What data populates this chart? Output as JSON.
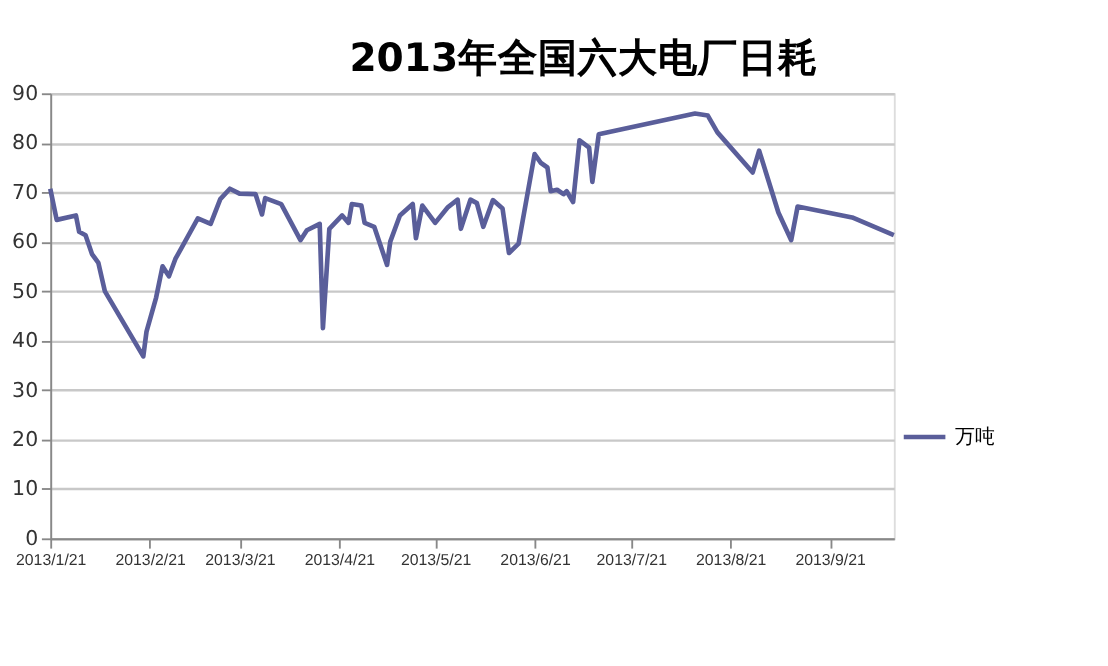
{
  "chart_data": {
    "type": "line",
    "title": "2013年全国六大电厂日耗",
    "x": [
      "2013-01-21",
      "2013-01-23",
      "2013-01-29",
      "2013-01-30",
      "2013-02-01",
      "2013-02-03",
      "2013-02-05",
      "2013-02-07",
      "2013-02-19",
      "2013-02-20",
      "2013-02-23",
      "2013-02-25",
      "2013-02-27",
      "2013-03-01",
      "2013-03-04",
      "2013-03-08",
      "2013-03-12",
      "2013-03-15",
      "2013-03-18",
      "2013-03-21",
      "2013-03-26",
      "2013-03-28",
      "2013-03-29",
      "2013-04-03",
      "2013-04-09",
      "2013-04-11",
      "2013-04-15",
      "2013-04-16",
      "2013-04-18",
      "2013-04-22",
      "2013-04-24",
      "2013-04-25",
      "2013-04-28",
      "2013-04-29",
      "2013-05-02",
      "2013-05-06",
      "2013-05-07",
      "2013-05-10",
      "2013-05-14",
      "2013-05-15",
      "2013-05-17",
      "2013-05-21",
      "2013-05-25",
      "2013-05-28",
      "2013-05-29",
      "2013-06-01",
      "2013-06-03",
      "2013-06-05",
      "2013-06-08",
      "2013-06-11",
      "2013-06-13",
      "2013-06-16",
      "2013-06-21",
      "2013-06-23",
      "2013-06-25",
      "2013-06-26",
      "2013-06-28",
      "2013-06-30",
      "2013-07-01",
      "2013-07-03",
      "2013-07-05",
      "2013-07-08",
      "2013-07-09",
      "2013-07-11",
      "2013-08-10",
      "2013-08-14",
      "2013-08-17",
      "2013-08-28",
      "2013-08-30",
      "2013-09-05",
      "2013-09-09",
      "2013-09-11",
      "2013-09-28",
      "2013-10-11"
    ],
    "series": [
      {
        "name": "万吨",
        "color": "#5a5e9a",
        "values": [
          70.7,
          64.4,
          65.3,
          62,
          61.3,
          57.5,
          55.7,
          50,
          36.8,
          41.8,
          48.7,
          55,
          53,
          56.5,
          60,
          64.7,
          63.6,
          68.6,
          70.7,
          69.7,
          69.6,
          65.5,
          68.8,
          67.6,
          60.3,
          62.3,
          63.6,
          42.5,
          62.6,
          65.3,
          63.8,
          67.6,
          67.3,
          63.8,
          63,
          55.3,
          60,
          65.3,
          67.6,
          60.7,
          67.3,
          63.8,
          67,
          68.5,
          62.6,
          68.5,
          67.8,
          63,
          68.4,
          66.7,
          57.7,
          59.6,
          77.7,
          75.9,
          75,
          70.2,
          70.5,
          69.6,
          70.2,
          68,
          80.5,
          79,
          72.1,
          81.7,
          85.9,
          85.5,
          82.1,
          74,
          78.4,
          65.9,
          60.3,
          67.1,
          64.9,
          61.3
        ]
      }
    ],
    "xlim": [
      "2013-01-21",
      "2013-10-11"
    ],
    "xticks": [
      {
        "value": "2013-01-21",
        "label": "2013/1/21"
      },
      {
        "value": "2013-02-21",
        "label": "2013/2/21"
      },
      {
        "value": "2013-03-21",
        "label": "2013/3/21"
      },
      {
        "value": "2013-04-21",
        "label": "2013/4/21"
      },
      {
        "value": "2013-05-21",
        "label": "2013/5/21"
      },
      {
        "value": "2013-06-21",
        "label": "2013/6/21"
      },
      {
        "value": "2013-07-21",
        "label": "2013/7/21"
      },
      {
        "value": "2013-08-21",
        "label": "2013/8/21"
      },
      {
        "value": "2013-09-21",
        "label": "2013/9/21"
      }
    ],
    "ylim": [
      0,
      90
    ],
    "yticks": [
      0,
      10,
      20,
      30,
      40,
      50,
      60,
      70,
      80,
      90
    ],
    "grid": "y",
    "legend": "right",
    "marker": "none",
    "line_style": "solid"
  }
}
